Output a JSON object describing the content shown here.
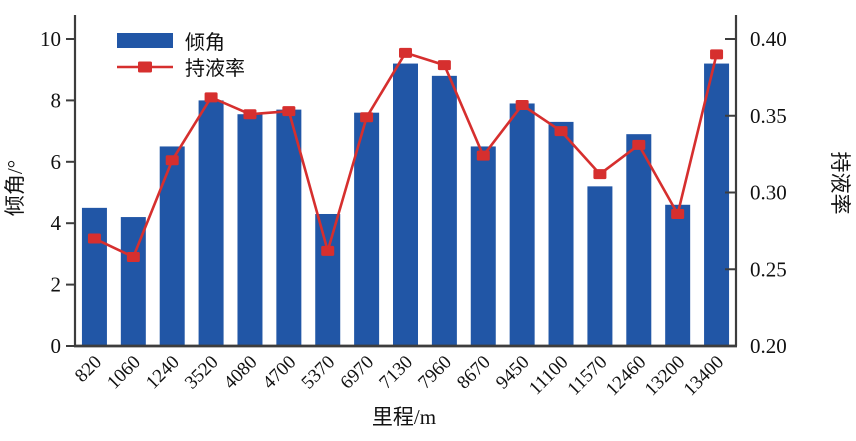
{
  "chart_data": {
    "type": "combo",
    "title": "",
    "categories": [
      "820",
      "1060",
      "1240",
      "3520",
      "4080",
      "4700",
      "5370",
      "6970",
      "7130",
      "7960",
      "8670",
      "9450",
      "11100",
      "11570",
      "12460",
      "13200",
      "13400"
    ],
    "series": [
      {
        "name": "倾角",
        "type": "bar",
        "axis": "left",
        "color": "#2156a6",
        "values": [
          4.5,
          4.2,
          6.5,
          8.0,
          7.55,
          7.7,
          4.3,
          7.6,
          9.2,
          8.8,
          6.5,
          7.9,
          7.3,
          5.2,
          6.9,
          4.6,
          9.2
        ]
      },
      {
        "name": "持液率",
        "type": "line",
        "axis": "right",
        "color": "#d62f2e",
        "marker": "square",
        "values": [
          0.27,
          0.258,
          0.321,
          0.362,
          0.351,
          0.353,
          0.262,
          0.349,
          0.391,
          0.383,
          0.324,
          0.357,
          0.34,
          0.312,
          0.331,
          0.286,
          0.39
        ]
      }
    ],
    "x_axis": {
      "label": "里程/m"
    },
    "left_axis": {
      "label": "倾角/°",
      "min": 0,
      "max": 10,
      "ticks": [
        "0",
        "2",
        "4",
        "6",
        "8",
        "10"
      ]
    },
    "right_axis": {
      "label": "持液率",
      "min": 0.2,
      "max": 0.4,
      "ticks": [
        "0.20",
        "0.25",
        "0.30",
        "0.35",
        "0.40"
      ]
    },
    "legend": {
      "position": "top-left",
      "items": [
        "倾角",
        "持液率"
      ]
    },
    "grid": false
  },
  "colors": {
    "bar": "#2156a6",
    "line": "#d62f2e",
    "axis": "#3d3d3d",
    "text": "#111111",
    "background": "#ffffff"
  }
}
